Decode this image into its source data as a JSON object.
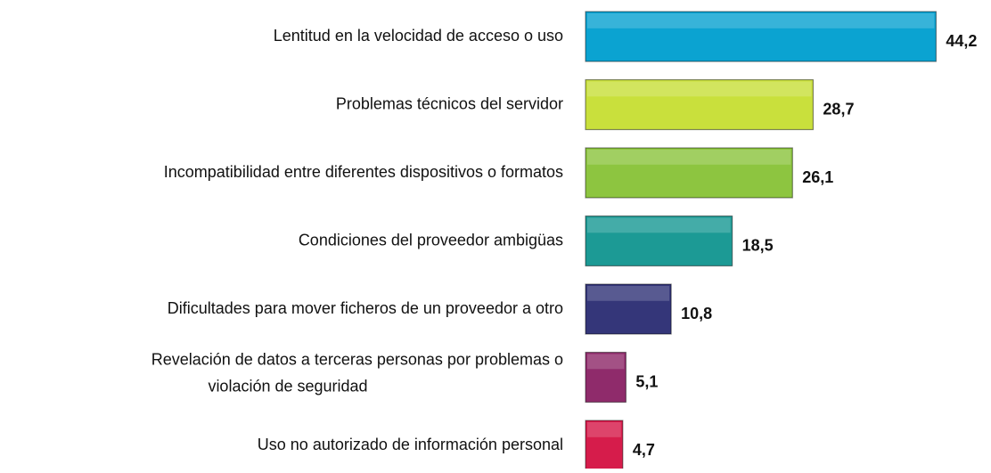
{
  "chart_data": {
    "type": "barh",
    "categories": [
      "Lentitud en la velocidad de acceso o uso",
      "Problemas técnicos del servidor",
      "Incompatibilidad entre diferentes dispositivos o formatos",
      "Condiciones del proveedor ambigüas",
      "Dificultades para mover ficheros de un proveedor a otro",
      "Revelación de datos a terceras personas por problemas o\nviolación de seguridad",
      "Uso no autorizado de información personal"
    ],
    "values": [
      44.2,
      28.7,
      26.1,
      18.5,
      10.8,
      5.1,
      4.7
    ],
    "value_labels": [
      "44,2",
      "28,7",
      "26,1",
      "18,5",
      "10,8",
      "5,1",
      "4,7"
    ],
    "colors": [
      "#0ba3d1",
      "#c9e03c",
      "#8dc540",
      "#1c9a95",
      "#343679",
      "#8f2b6b",
      "#d61c4b"
    ]
  }
}
